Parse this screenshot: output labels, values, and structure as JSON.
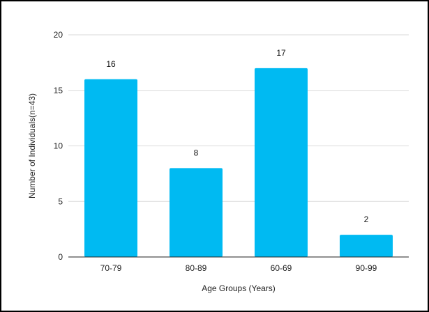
{
  "chart_data": {
    "type": "bar",
    "title": "",
    "xlabel": "Age Groups (Years)",
    "ylabel": "Number of Individuals(n=43)",
    "categories": [
      "70-79",
      "80-89",
      "60-69",
      "90-99"
    ],
    "values": [
      16,
      8,
      17,
      2
    ],
    "ylim": [
      0,
      20
    ],
    "yticks": [
      0,
      5,
      10,
      15,
      20
    ],
    "grid": true,
    "data_labels": true,
    "bar_color": "#00BAF2",
    "grid_color": "#d9d9d9",
    "axis_color": "#222222"
  }
}
